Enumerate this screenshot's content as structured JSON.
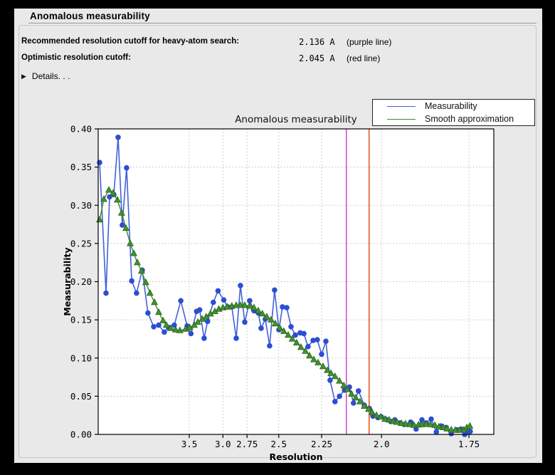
{
  "window": {
    "title": "Anomalous measurability"
  },
  "header": {
    "rows": [
      {
        "label": "Recommended resolution cutoff for heavy-atom search:",
        "value": "2.136 A",
        "note": "(purple line)"
      },
      {
        "label": "Optimistic resolution cutoff:",
        "value": "2.045 A",
        "note": "(red line)"
      }
    ],
    "details_label": "Details. . ."
  },
  "chart_data": {
    "type": "line",
    "title": "Anomalous measurability",
    "xlabel": "Resolution",
    "ylabel": "Measurability",
    "grid": true,
    "legend_position": "top-right",
    "x_axis": {
      "scale": "1/d^2",
      "tick_values": [
        3.5,
        3.0,
        2.75,
        2.5,
        2.25,
        2.0,
        1.75
      ],
      "tick_labels": [
        "3.5",
        "3.0",
        "2.75",
        "2.5",
        "2.25",
        "2.0",
        "1.75"
      ],
      "range_s": [
        0.0019,
        0.3483
      ]
    },
    "y_axis": {
      "ticks": [
        0.0,
        0.05,
        0.1,
        0.15,
        0.2,
        0.25,
        0.3,
        0.35,
        0.4
      ],
      "range": [
        0.0,
        0.4
      ]
    },
    "vlines": [
      {
        "label": "purple line",
        "resolution": 2.136,
        "color": "#d138d1"
      },
      {
        "label": "red line",
        "resolution": 2.045,
        "color": "#dd4500"
      }
    ],
    "series": [
      {
        "name": "Measurability",
        "marker": "circle",
        "line_color": "#4161da",
        "marker_color": "#2b4ed2",
        "points": [
          [
            17.89,
            0.356
          ],
          [
            10.7,
            0.185
          ],
          [
            9.19,
            0.311
          ],
          [
            8.01,
            0.314
          ],
          [
            7.19,
            0.389
          ],
          [
            6.59,
            0.274
          ],
          [
            6.11,
            0.349
          ],
          [
            5.66,
            0.201
          ],
          [
            5.31,
            0.185
          ],
          [
            4.97,
            0.215
          ],
          [
            4.69,
            0.159
          ],
          [
            4.45,
            0.141
          ],
          [
            4.27,
            0.143
          ],
          [
            4.09,
            0.134
          ],
          [
            3.97,
            0.14
          ],
          [
            3.82,
            0.143
          ],
          [
            3.67,
            0.175
          ],
          [
            3.54,
            0.142
          ],
          [
            3.47,
            0.132
          ],
          [
            3.37,
            0.161
          ],
          [
            3.32,
            0.163
          ],
          [
            3.25,
            0.126
          ],
          [
            3.2,
            0.148
          ],
          [
            3.12,
            0.173
          ],
          [
            3.06,
            0.188
          ],
          [
            2.99,
            0.176
          ],
          [
            2.945,
            0.167
          ],
          [
            2.9,
            0.167
          ],
          [
            2.854,
            0.126
          ],
          [
            2.812,
            0.195
          ],
          [
            2.771,
            0.147
          ],
          [
            2.726,
            0.175
          ],
          [
            2.689,
            0.162
          ],
          [
            2.653,
            0.159
          ],
          [
            2.63,
            0.139
          ],
          [
            2.597,
            0.151
          ],
          [
            2.565,
            0.116
          ],
          [
            2.529,
            0.189
          ],
          [
            2.499,
            0.137
          ],
          [
            2.475,
            0.167
          ],
          [
            2.447,
            0.166
          ],
          [
            2.42,
            0.141
          ],
          [
            2.394,
            0.13
          ],
          [
            2.365,
            0.133
          ],
          [
            2.344,
            0.132
          ],
          [
            2.321,
            0.115
          ],
          [
            2.294,
            0.123
          ],
          [
            2.272,
            0.124
          ],
          [
            2.25,
            0.105
          ],
          [
            2.229,
            0.122
          ],
          [
            2.209,
            0.071
          ],
          [
            2.186,
            0.043
          ],
          [
            2.166,
            0.05
          ],
          [
            2.144,
            0.058
          ],
          [
            2.123,
            0.062
          ],
          [
            2.106,
            0.041
          ],
          [
            2.086,
            0.057
          ],
          [
            2.063,
            0.038
          ],
          [
            2.044,
            0.034
          ],
          [
            2.031,
            0.024
          ],
          [
            2.013,
            0.022
          ],
          [
            2.001,
            0.023
          ],
          [
            1.986,
            0.02
          ],
          [
            1.969,
            0.017
          ],
          [
            1.955,
            0.019
          ],
          [
            1.939,
            0.015
          ],
          [
            1.925,
            0.013
          ],
          [
            1.905,
            0.016
          ],
          [
            1.889,
            0.007
          ],
          [
            1.872,
            0.019
          ],
          [
            1.86,
            0.015
          ],
          [
            1.846,
            0.02
          ],
          [
            1.832,
            0.003
          ],
          [
            1.819,
            0.011
          ],
          [
            1.806,
            0.009
          ],
          [
            1.793,
            0.001
          ],
          [
            1.779,
            0.006
          ],
          [
            1.769,
            0.007
          ],
          [
            1.76,
            0.0
          ],
          [
            1.753,
            0.003
          ],
          [
            1.747,
            0.004
          ]
        ]
      },
      {
        "name": "Smooth approximation",
        "marker": "triangle",
        "line_color": "#3d8b2a",
        "marker_color": "#419232",
        "marker_edge": "#2a641a",
        "points": [
          [
            17.89,
            0.281
          ],
          [
            12.07,
            0.308
          ],
          [
            9.44,
            0.32
          ],
          [
            8.17,
            0.316
          ],
          [
            7.31,
            0.307
          ],
          [
            6.68,
            0.29
          ],
          [
            6.18,
            0.27
          ],
          [
            5.78,
            0.25
          ],
          [
            5.5,
            0.237
          ],
          [
            5.26,
            0.225
          ],
          [
            5.01,
            0.214
          ],
          [
            4.79,
            0.199
          ],
          [
            4.6,
            0.185
          ],
          [
            4.42,
            0.173
          ],
          [
            4.27,
            0.16
          ],
          [
            4.13,
            0.149
          ],
          [
            4.03,
            0.143
          ],
          [
            3.91,
            0.139
          ],
          [
            3.79,
            0.137
          ],
          [
            3.69,
            0.136
          ],
          [
            3.57,
            0.138
          ],
          [
            3.49,
            0.14
          ],
          [
            3.41,
            0.143
          ],
          [
            3.35,
            0.147
          ],
          [
            3.28,
            0.151
          ],
          [
            3.22,
            0.154
          ],
          [
            3.16,
            0.158
          ],
          [
            3.1,
            0.161
          ],
          [
            3.05,
            0.164
          ],
          [
            3.0,
            0.166
          ],
          [
            2.95,
            0.167
          ],
          [
            2.9,
            0.168
          ],
          [
            2.854,
            0.169
          ],
          [
            2.812,
            0.169
          ],
          [
            2.771,
            0.169
          ],
          [
            2.726,
            0.168
          ],
          [
            2.689,
            0.166
          ],
          [
            2.653,
            0.162
          ],
          [
            2.62,
            0.158
          ],
          [
            2.586,
            0.154
          ],
          [
            2.554,
            0.15
          ],
          [
            2.524,
            0.145
          ],
          [
            2.494,
            0.14
          ],
          [
            2.466,
            0.135
          ],
          [
            2.438,
            0.13
          ],
          [
            2.412,
            0.125
          ],
          [
            2.386,
            0.12
          ],
          [
            2.361,
            0.114
          ],
          [
            2.336,
            0.109
          ],
          [
            2.313,
            0.103
          ],
          [
            2.29,
            0.098
          ],
          [
            2.268,
            0.094
          ],
          [
            2.243,
            0.089
          ],
          [
            2.222,
            0.084
          ],
          [
            2.205,
            0.08
          ],
          [
            2.186,
            0.076
          ],
          [
            2.166,
            0.07
          ],
          [
            2.147,
            0.064
          ],
          [
            2.132,
            0.059
          ],
          [
            2.114,
            0.053
          ],
          [
            2.097,
            0.048
          ],
          [
            2.08,
            0.043
          ],
          [
            2.063,
            0.037
          ],
          [
            2.047,
            0.033
          ],
          [
            2.034,
            0.029
          ],
          [
            2.018,
            0.025
          ],
          [
            2.003,
            0.023
          ],
          [
            1.988,
            0.02
          ],
          [
            1.974,
            0.019
          ],
          [
            1.96,
            0.017
          ],
          [
            1.948,
            0.016
          ],
          [
            1.934,
            0.0145
          ],
          [
            1.921,
            0.014
          ],
          [
            1.908,
            0.013
          ],
          [
            1.895,
            0.012
          ],
          [
            1.882,
            0.0125
          ],
          [
            1.872,
            0.013
          ],
          [
            1.86,
            0.0135
          ],
          [
            1.848,
            0.013
          ],
          [
            1.836,
            0.012
          ],
          [
            1.825,
            0.01
          ],
          [
            1.813,
            0.009
          ],
          [
            1.804,
            0.0075
          ],
          [
            1.793,
            0.006
          ],
          [
            1.783,
            0.0055
          ],
          [
            1.772,
            0.0055
          ],
          [
            1.762,
            0.006
          ],
          [
            1.755,
            0.009
          ],
          [
            1.748,
            0.011
          ]
        ]
      }
    ]
  },
  "colors": {
    "panel_bg": "#e9e9e9",
    "plot_bg": "#ffffff",
    "grid": "#bdbdbd",
    "frame": "#000000"
  }
}
